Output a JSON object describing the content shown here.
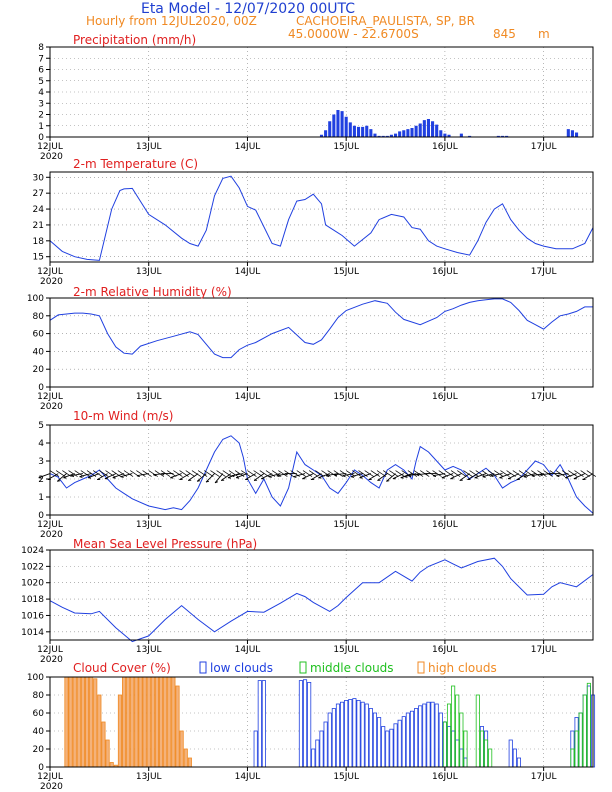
{
  "header": {
    "title": "Eta Model - 12/07/2020 00UTC",
    "subtitle_left": "Hourly from 12JUL2020, 00Z",
    "location": "CACHOEIRA_PAULISTA, SP, BR",
    "coords": "45.0000W - 22.6700S",
    "elevation": "845",
    "elevation_unit": "m"
  },
  "colors": {
    "title": "#1f3fd0",
    "subtitle": "#f08a24",
    "panel_title": "#e02020",
    "line": "#2040e0",
    "bar_low": "#2040e0",
    "bar_mid": "#20c020",
    "bar_high": "#f08a24",
    "wind_arrow": "#000000"
  },
  "x_axis": {
    "labels": [
      "12JUL",
      "13JUL",
      "14JUL",
      "15JUL",
      "16JUL",
      "17JUL"
    ],
    "year": "2020",
    "hours_total": 132
  },
  "chart_data": [
    {
      "id": "precip",
      "type": "bar",
      "title": "Precipitation (mm/h)",
      "ylim": [
        0,
        8
      ],
      "yticks": [
        0,
        1,
        2,
        3,
        4,
        5,
        6,
        7,
        8
      ],
      "show_year": true,
      "x_hours": [
        66,
        67,
        68,
        69,
        70,
        71,
        72,
        73,
        74,
        75,
        76,
        77,
        78,
        79,
        80,
        81,
        82,
        83,
        84,
        85,
        86,
        87,
        88,
        89,
        90,
        91,
        92,
        93,
        94,
        95,
        96,
        97,
        100,
        102,
        109,
        110,
        111,
        126,
        127,
        128
      ],
      "values": [
        0.2,
        0.6,
        1.4,
        2.0,
        2.4,
        2.3,
        1.8,
        1.3,
        1.0,
        0.9,
        0.9,
        1.0,
        0.7,
        0.3,
        0.1,
        0.1,
        0.1,
        0.2,
        0.3,
        0.5,
        0.6,
        0.7,
        0.8,
        1.0,
        1.2,
        1.5,
        1.6,
        1.4,
        1.1,
        0.6,
        0.3,
        0.2,
        0.3,
        0.1,
        0.1,
        0.1,
        0.1,
        0.7,
        0.6,
        0.4
      ]
    },
    {
      "id": "temp",
      "type": "line",
      "title": "2-m Temperature (C)",
      "ylim": [
        14,
        31
      ],
      "yticks": [
        15,
        18,
        21,
        24,
        27,
        30
      ],
      "show_year": true,
      "x": [
        0,
        3,
        6,
        9,
        12,
        15,
        17,
        18,
        20,
        24,
        28,
        32,
        34,
        36,
        38,
        40,
        42,
        44,
        46,
        48,
        50,
        54,
        56,
        58,
        60,
        62,
        64,
        66,
        67,
        69,
        71,
        74,
        78,
        80,
        83,
        86,
        88,
        90,
        92,
        94,
        96,
        99,
        102,
        104,
        106,
        108,
        110,
        112,
        114,
        116,
        118,
        120,
        123,
        127,
        130,
        132
      ],
      "values": [
        18,
        16,
        15,
        14.5,
        14.3,
        24,
        27.5,
        27.8,
        27.9,
        23,
        21,
        18.5,
        17.5,
        17,
        20,
        26.5,
        29.8,
        30.2,
        28,
        24.5,
        23.8,
        17.5,
        17,
        22,
        25.5,
        25.8,
        26.8,
        25,
        21,
        20,
        19,
        17,
        19.5,
        22,
        23,
        22.5,
        20.5,
        20.2,
        18,
        17,
        16.5,
        15.8,
        15.3,
        18,
        21.5,
        24,
        25,
        22,
        20,
        18.5,
        17.5,
        17,
        16.5,
        16.5,
        17.5,
        20.5
      ]
    },
    {
      "id": "rh",
      "type": "line",
      "title": "2-m Relative Humidity (%)",
      "ylim": [
        0,
        100
      ],
      "yticks": [
        0,
        20,
        40,
        60,
        80,
        100
      ],
      "show_year": true,
      "x": [
        0,
        2,
        4,
        6,
        8,
        10,
        12,
        14,
        16,
        18,
        20,
        22,
        26,
        30,
        34,
        36,
        38,
        40,
        42,
        44,
        46,
        48,
        50,
        54,
        58,
        62,
        64,
        66,
        68,
        70,
        72,
        76,
        79,
        82,
        84,
        86,
        90,
        94,
        96,
        98,
        100,
        102,
        104,
        106,
        108,
        110,
        112,
        114,
        116,
        118,
        120,
        122,
        124,
        126,
        128,
        130,
        132
      ],
      "values": [
        75,
        81,
        82,
        83,
        83,
        82,
        80,
        60,
        45,
        38,
        37,
        46,
        52,
        57,
        62,
        59,
        48,
        37,
        33,
        33,
        42,
        47,
        50,
        60,
        67,
        50,
        48,
        53,
        65,
        78,
        86,
        93,
        97,
        94,
        84,
        76,
        70,
        78,
        85,
        88,
        92,
        95,
        97,
        98,
        99,
        99,
        95,
        86,
        75,
        70,
        65,
        73,
        80,
        82,
        85,
        90,
        90
      ]
    },
    {
      "id": "wind",
      "type": "line",
      "title": "10-m Wind (m/s)",
      "ylim": [
        0,
        5
      ],
      "yticks": [
        0,
        1,
        2,
        3,
        4,
        5
      ],
      "show_year": true,
      "x": [
        0,
        2,
        4,
        6,
        8,
        10,
        12,
        14,
        16,
        18,
        20,
        24,
        28,
        30,
        32,
        34,
        36,
        38,
        40,
        42,
        44,
        46,
        47,
        48,
        50,
        52,
        54,
        56,
        58,
        60,
        62,
        64,
        66,
        68,
        70,
        72,
        74,
        76,
        78,
        80,
        82,
        84,
        86,
        88,
        89,
        90,
        92,
        94,
        96,
        98,
        100,
        102,
        104,
        106,
        108,
        110,
        112,
        114,
        116,
        118,
        120,
        122,
        124,
        126,
        128,
        130,
        132
      ],
      "values": [
        2.3,
        2.1,
        1.5,
        1.8,
        2.0,
        2.2,
        2.5,
        2.0,
        1.5,
        1.2,
        0.9,
        0.5,
        0.3,
        0.4,
        0.3,
        0.8,
        1.5,
        2.5,
        3.5,
        4.2,
        4.4,
        4.0,
        3.2,
        2.0,
        1.2,
        2.0,
        1.0,
        0.5,
        1.5,
        3.5,
        2.8,
        2.5,
        2.2,
        1.5,
        1.2,
        1.8,
        2.5,
        2.2,
        1.8,
        1.5,
        2.5,
        2.8,
        2.5,
        2.0,
        3.0,
        3.8,
        3.5,
        3.0,
        2.5,
        2.7,
        2.5,
        2.0,
        2.3,
        2.6,
        2.2,
        1.5,
        1.8,
        2.0,
        2.5,
        3.0,
        2.8,
        2.2,
        2.8,
        2.0,
        1.0,
        0.5,
        0.1
      ],
      "arrow_y": 2.3,
      "arrow_angle": [
        200,
        210,
        220,
        200,
        190,
        195,
        200,
        210,
        205,
        200,
        195,
        190,
        185,
        180,
        200,
        210,
        215,
        220,
        225,
        230,
        215,
        200,
        190,
        200,
        210,
        215,
        205,
        195,
        190,
        180,
        195,
        205,
        210,
        200,
        190,
        185,
        190,
        195,
        200,
        210,
        215,
        220,
        205,
        200,
        195,
        190,
        185,
        180,
        190,
        200,
        205,
        215,
        210,
        200,
        195,
        190,
        200,
        205,
        210,
        195,
        190,
        185,
        180,
        190,
        200,
        205,
        210
      ]
    },
    {
      "id": "mslp",
      "type": "line",
      "title": "Mean Sea Level Pressure (hPa)",
      "ylim": [
        1013,
        1024
      ],
      "yticks": [
        1014,
        1016,
        1018,
        1020,
        1022,
        1024
      ],
      "show_year": true,
      "x": [
        0,
        3,
        6,
        10,
        12,
        16,
        20,
        24,
        28,
        32,
        36,
        40,
        44,
        48,
        52,
        56,
        60,
        62,
        64,
        68,
        70,
        72,
        76,
        80,
        84,
        88,
        90,
        92,
        96,
        98,
        100,
        104,
        108,
        110,
        112,
        116,
        120,
        122,
        124,
        128,
        132
      ],
      "values": [
        1017.8,
        1017,
        1016.3,
        1016.2,
        1016.5,
        1014.5,
        1012.8,
        1013.5,
        1015.5,
        1017.2,
        1015.5,
        1014,
        1015.3,
        1016.5,
        1016.4,
        1017.5,
        1018.7,
        1018.3,
        1017.6,
        1016.5,
        1017.2,
        1018.2,
        1020,
        1020,
        1021.4,
        1020.2,
        1021.3,
        1022,
        1022.8,
        1022.3,
        1021.8,
        1022.6,
        1023,
        1022,
        1020.5,
        1018.5,
        1018.6,
        1019.5,
        1020,
        1019.5,
        1021
      ]
    },
    {
      "id": "cloud",
      "type": "bar",
      "title": "Cloud Cover (%)",
      "ylim": [
        0,
        100
      ],
      "yticks": [
        0,
        20,
        40,
        60,
        80,
        100
      ],
      "show_year": true,
      "legend": [
        "low clouds",
        "middle clouds",
        "high clouds"
      ],
      "series": [
        {
          "name": "high clouds",
          "x_hours": [
            4,
            5,
            6,
            7,
            8,
            9,
            10,
            11,
            12,
            13,
            14,
            15,
            16,
            17,
            18,
            19,
            20,
            21,
            22,
            23,
            24,
            25,
            26,
            27,
            28,
            29,
            30,
            31,
            32,
            33,
            34
          ],
          "values": [
            100,
            100,
            100,
            100,
            100,
            100,
            100,
            98,
            80,
            50,
            30,
            5,
            2,
            80,
            100,
            100,
            100,
            100,
            100,
            100,
            100,
            100,
            100,
            100,
            100,
            100,
            100,
            90,
            40,
            20,
            10
          ]
        },
        {
          "name": "low clouds",
          "x_hours": [
            50,
            51,
            52,
            61,
            62,
            63,
            64,
            65,
            66,
            67,
            68,
            69,
            70,
            71,
            72,
            73,
            74,
            75,
            76,
            77,
            78,
            79,
            80,
            81,
            82,
            83,
            84,
            85,
            86,
            87,
            88,
            89,
            90,
            91,
            92,
            93,
            94,
            95,
            96,
            97,
            98,
            99,
            100,
            101,
            105,
            106,
            112,
            113,
            114,
            127,
            128,
            129,
            130,
            131,
            132
          ],
          "values": [
            40,
            96,
            96,
            96,
            97,
            94,
            20,
            30,
            40,
            50,
            60,
            65,
            70,
            72,
            74,
            75,
            76,
            74,
            72,
            70,
            65,
            60,
            55,
            45,
            40,
            42,
            48,
            52,
            56,
            60,
            62,
            65,
            68,
            70,
            72,
            72,
            70,
            60,
            50,
            45,
            40,
            30,
            20,
            10,
            45,
            40,
            30,
            20,
            10,
            40,
            55,
            60,
            80,
            90,
            80
          ]
        },
        {
          "name": "middle clouds",
          "x_hours": [
            96,
            97,
            98,
            99,
            100,
            101,
            104,
            105,
            106,
            107,
            127,
            128,
            129,
            130,
            131
          ],
          "values": [
            50,
            70,
            90,
            80,
            60,
            40,
            80,
            40,
            30,
            20,
            20,
            40,
            60,
            80,
            93
          ]
        }
      ]
    }
  ]
}
